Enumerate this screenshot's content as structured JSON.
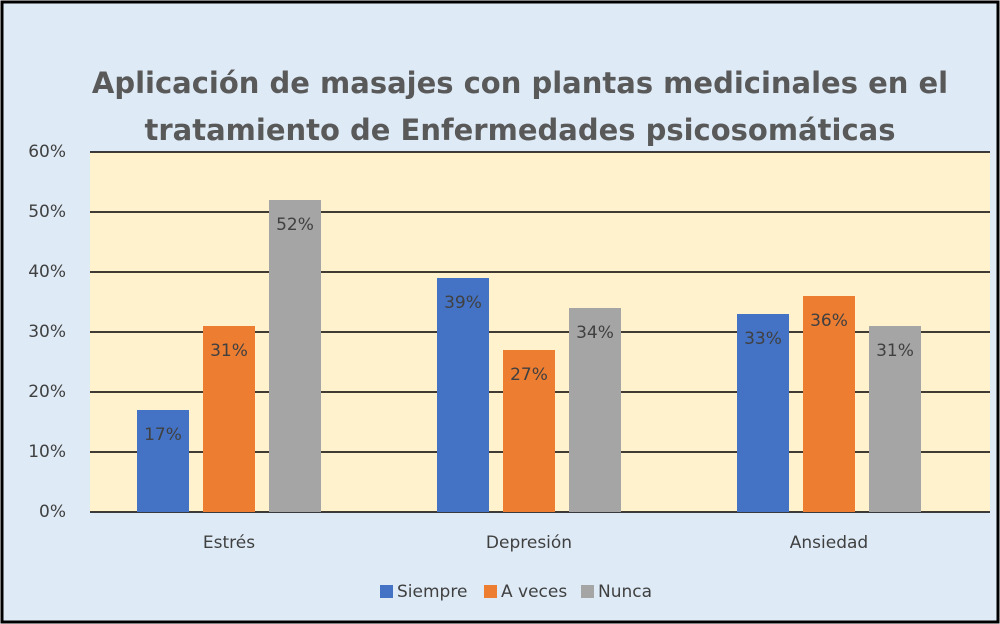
{
  "chart_data": {
    "type": "bar",
    "title": [
      "Aplicación de masajes con plantas medicinales en el",
      "tratamiento de Enfermedades psicosomáticas"
    ],
    "categories": [
      "Estrés",
      "Depresión",
      "Ansiedad"
    ],
    "series": [
      {
        "name": "Siempre",
        "color": "#4472c4",
        "values": [
          17,
          39,
          33
        ],
        "value_labels": [
          "17%",
          "39%",
          "33%"
        ]
      },
      {
        "name": "A veces",
        "color": "#ed7d31",
        "values": [
          31,
          27,
          36
        ],
        "value_labels": [
          "31%",
          "27%",
          "36%"
        ]
      },
      {
        "name": "Nunca",
        "color": "#a5a5a5",
        "values": [
          52,
          34,
          31
        ],
        "value_labels": [
          "52%",
          "34%",
          "31%"
        ]
      }
    ],
    "ylim": [
      0,
      60
    ],
    "yticks": [
      {
        "value": 0,
        "label": "0%"
      },
      {
        "value": 10,
        "label": "10%"
      },
      {
        "value": 20,
        "label": "20%"
      },
      {
        "value": 30,
        "label": "30%"
      },
      {
        "value": 40,
        "label": "40%"
      },
      {
        "value": 50,
        "label": "50%"
      },
      {
        "value": 60,
        "label": "60%"
      }
    ],
    "grid": true,
    "legend": "bottom"
  }
}
